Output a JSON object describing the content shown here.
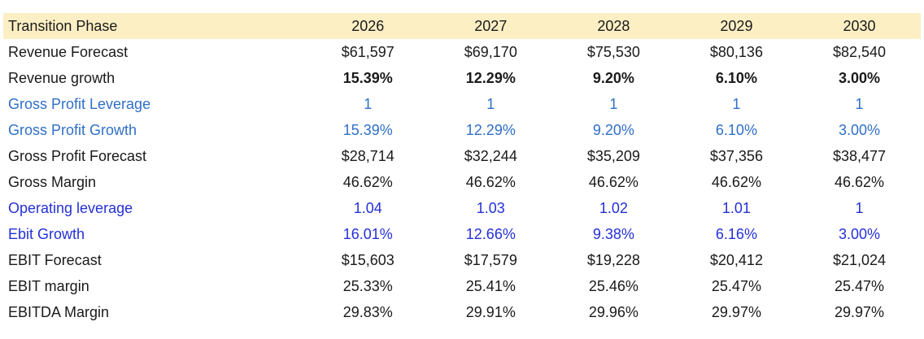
{
  "table": {
    "header": {
      "label": "Transition Phase",
      "years": [
        "2026",
        "2027",
        "2028",
        "2029",
        "2030"
      ]
    },
    "rows": [
      {
        "label": "Revenue Forecast",
        "style": "",
        "values": [
          "$61,597",
          "$69,170",
          "$75,530",
          "$80,136",
          "$82,540"
        ]
      },
      {
        "label": "Revenue growth",
        "style": "bold",
        "values": [
          "15.39%",
          "12.29%",
          "9.20%",
          "6.10%",
          "3.00%"
        ]
      },
      {
        "label": "Gross Profit Leverage",
        "style": "blue-a",
        "values": [
          "1",
          "1",
          "1",
          "1",
          "1"
        ]
      },
      {
        "label": "Gross Profit Growth",
        "style": "blue-a",
        "values": [
          "15.39%",
          "12.29%",
          "9.20%",
          "6.10%",
          "3.00%"
        ]
      },
      {
        "label": "Gross Profit Forecast",
        "style": "",
        "values": [
          "$28,714",
          "$32,244",
          "$35,209",
          "$37,356",
          "$38,477"
        ]
      },
      {
        "label": "Gross Margin",
        "style": "",
        "values": [
          "46.62%",
          "46.62%",
          "46.62%",
          "46.62%",
          "46.62%"
        ]
      },
      {
        "label": "Operating leverage",
        "style": "blue-b",
        "values": [
          "1.04",
          "1.03",
          "1.02",
          "1.01",
          "1"
        ]
      },
      {
        "label": "Ebit Growth",
        "style": "blue-b",
        "values": [
          "16.01%",
          "12.66%",
          "9.38%",
          "6.16%",
          "3.00%"
        ]
      },
      {
        "label": "EBIT Forecast",
        "style": "",
        "values": [
          "$15,603",
          "$17,579",
          "$19,228",
          "$20,412",
          "$21,024"
        ]
      },
      {
        "label": "EBIT margin",
        "style": "",
        "values": [
          "25.33%",
          "25.41%",
          "25.46%",
          "25.47%",
          "25.47%"
        ]
      },
      {
        "label": "EBITDA Margin",
        "style": "",
        "values": [
          "29.83%",
          "29.91%",
          "29.96%",
          "29.97%",
          "29.97%"
        ]
      }
    ]
  },
  "colors": {
    "header_background": "#fdefc4",
    "input_blue_light": "#2f6fc8",
    "input_blue_dark": "#2430d8",
    "text": "#1a1a1a"
  }
}
